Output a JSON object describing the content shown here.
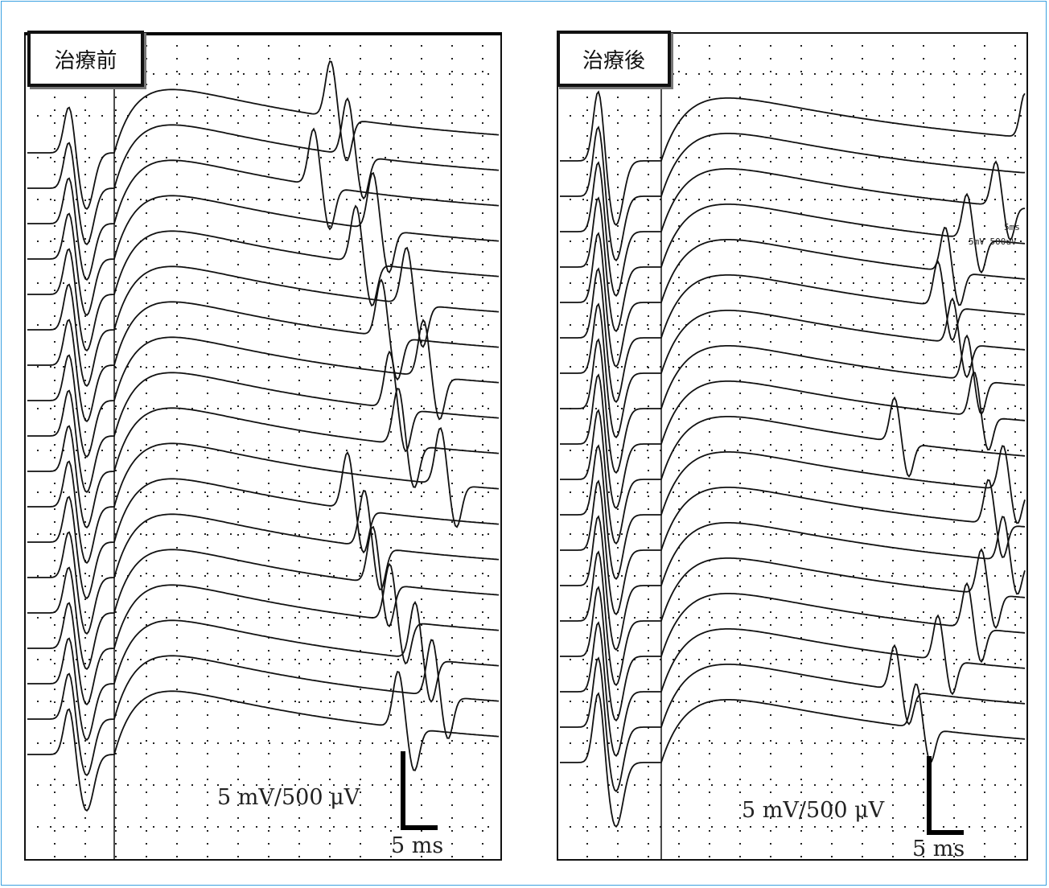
{
  "chart_data": [
    {
      "type": "line",
      "panel": "left",
      "title": "治療前",
      "scale_voltage": "5 mV/500 μV",
      "scale_time": "5 ms",
      "grid": true,
      "traces": 18,
      "f_wave_latency_ms": [
        22,
        24,
        20,
        27,
        25,
        31,
        28,
        33,
        29,
        30,
        35,
        24,
        26,
        27,
        29,
        32,
        34,
        30
      ]
    },
    {
      "type": "line",
      "panel": "right",
      "title": "治療後",
      "scale_voltage": "5 mV/500 μV",
      "scale_time": "5 ms",
      "inset_time": "5ms",
      "inset_voltage": "5mV 500uV",
      "grid": true,
      "traces": 18,
      "f_wave_latency_ms": [
        48,
        50,
        44,
        40,
        37,
        36,
        38,
        40,
        41,
        30,
        45,
        43,
        45,
        42,
        40,
        36,
        30,
        33
      ]
    }
  ]
}
